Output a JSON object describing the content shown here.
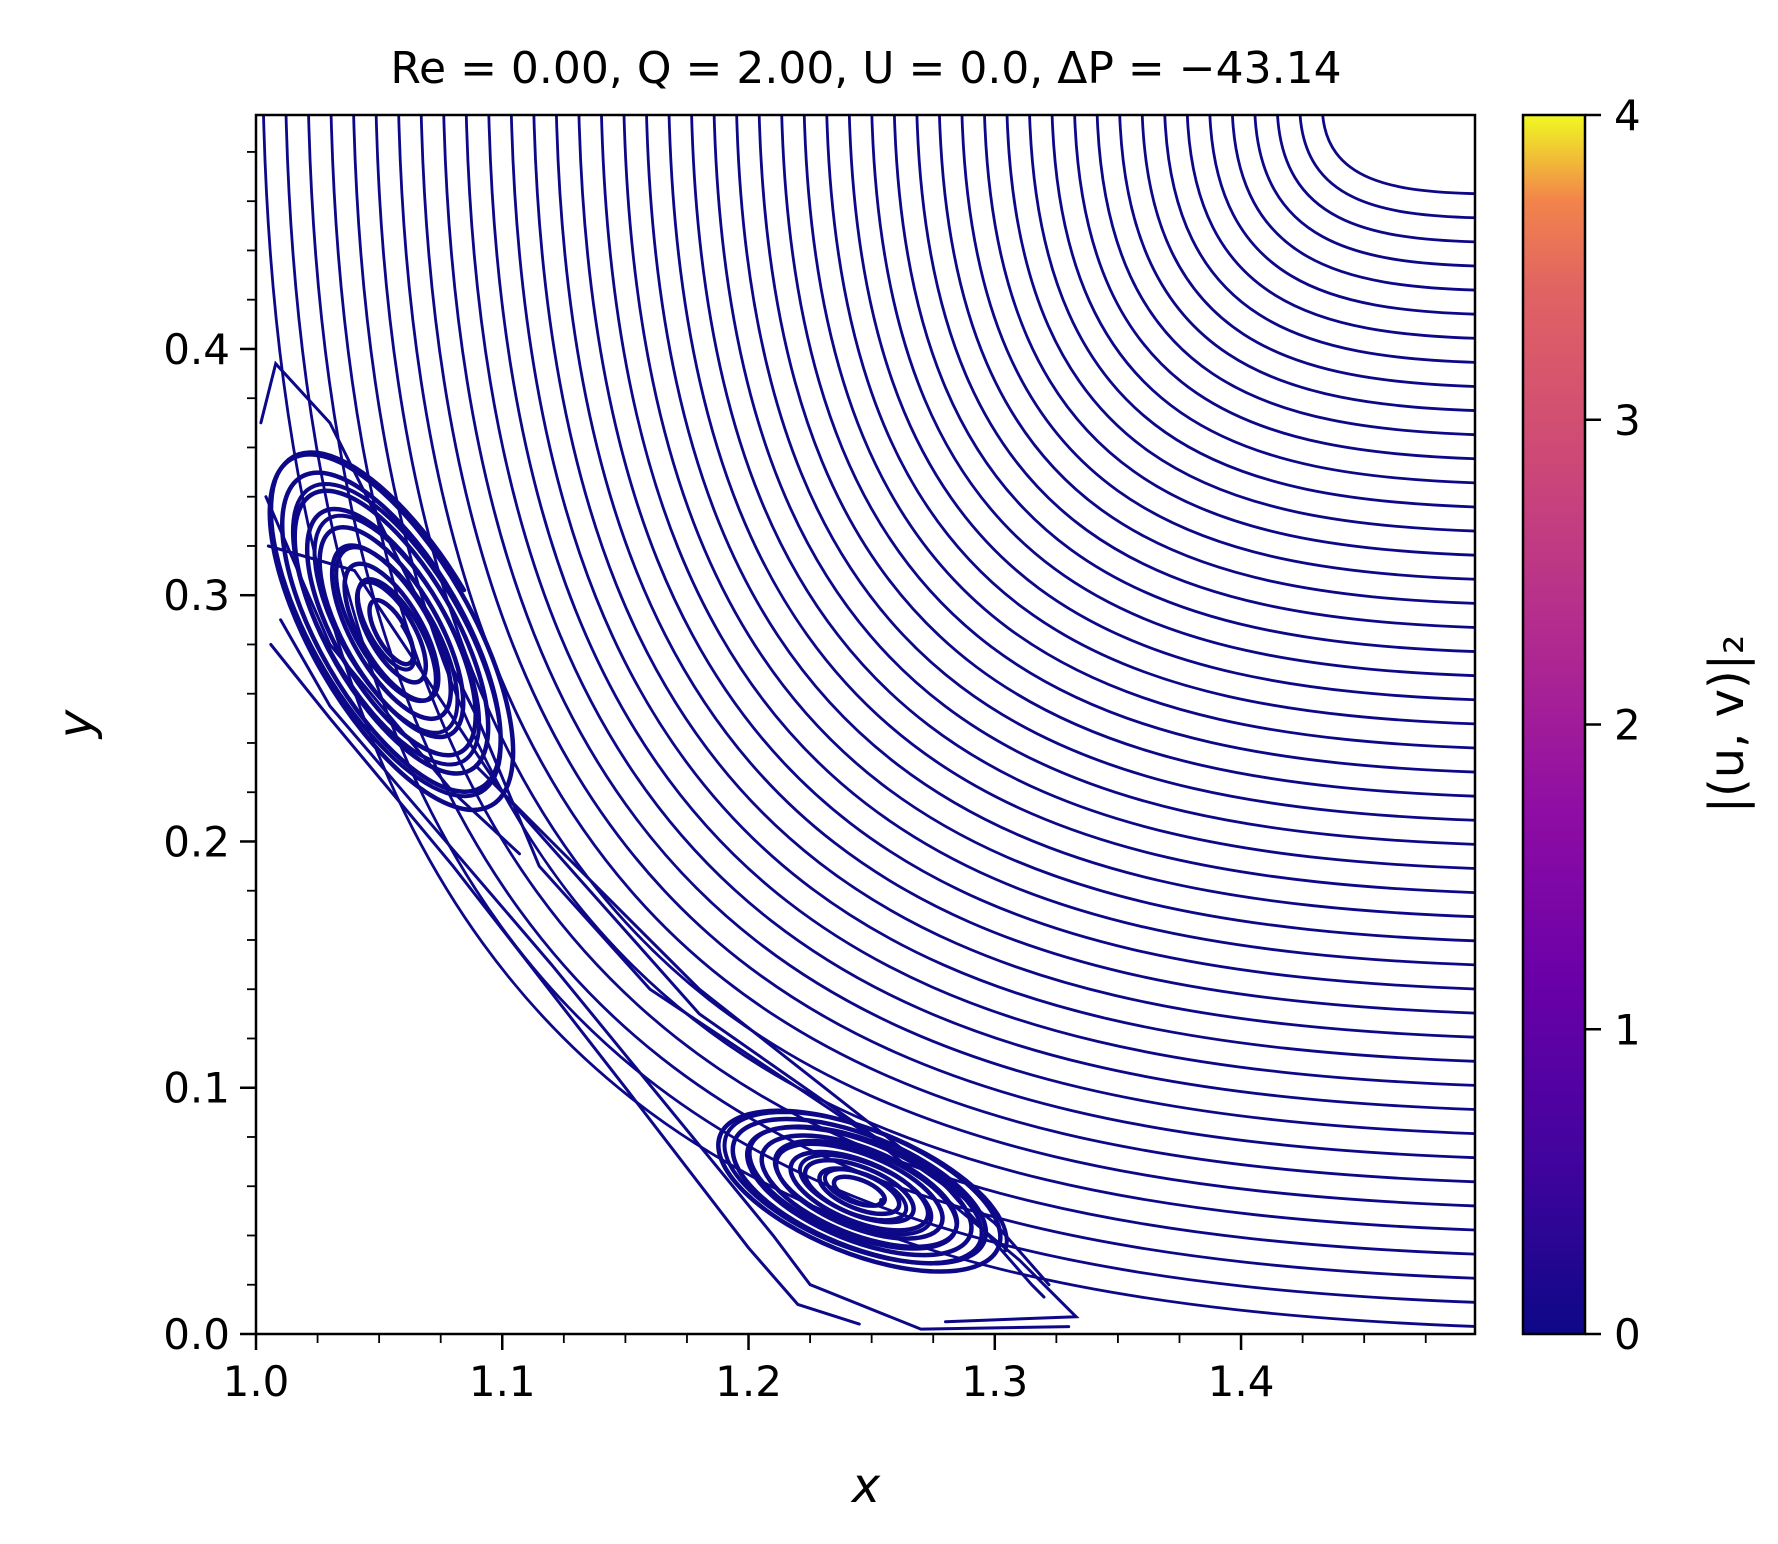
{
  "chart_data": {
    "type": "streamline",
    "title": "Re = 0.00, Q = 2.00, U = 0.0, ΔP = −43.14",
    "xlabel": "x",
    "ylabel": "y",
    "xlim": [
      1.0,
      1.495
    ],
    "ylim": [
      0.0,
      0.495
    ],
    "xticks": [
      "1.0",
      "1.1",
      "1.2",
      "1.3",
      "1.4"
    ],
    "yticks": [
      "0.0",
      "0.1",
      "0.2",
      "0.3",
      "0.4"
    ],
    "x_tick_values": [
      1.0,
      1.1,
      1.2,
      1.3,
      1.4
    ],
    "y_tick_values": [
      0.0,
      0.1,
      0.2,
      0.3,
      0.4
    ],
    "colorbar": {
      "label": "|(u, v)|₂",
      "range": [
        0,
        4
      ],
      "ticks": [
        "0",
        "1",
        "2",
        "3",
        "4"
      ],
      "tick_values": [
        0,
        1,
        2,
        3,
        4
      ],
      "colormap": "plasma"
    },
    "vortices": [
      {
        "center": [
          1.055,
          0.285
        ]
      },
      {
        "center": [
          1.245,
          0.058
        ]
      }
    ],
    "line_color": "#0d0887"
  }
}
